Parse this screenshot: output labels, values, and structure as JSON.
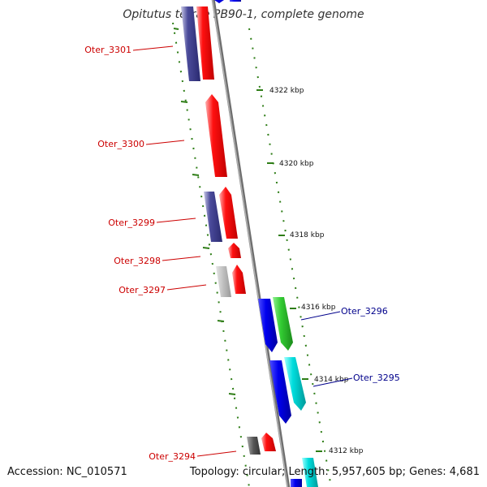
{
  "title": "Opitutus terrae PB90-1, complete genome",
  "accession": "Accession: NC_010571",
  "summary": "Topology: circular; Length: 5,957,605 bp; Genes: 4,681",
  "scale_ticks": [
    {
      "label": "4322 kbp"
    },
    {
      "label": "4320 kbp"
    },
    {
      "label": "4318 kbp"
    },
    {
      "label": "4316 kbp"
    },
    {
      "label": "4314 kbp"
    },
    {
      "label": "4312 kbp"
    }
  ],
  "gene_labels": {
    "reverse_strand": [
      "Oter_3301",
      "Oter_3300",
      "Oter_3299",
      "Oter_3298",
      "Oter_3297",
      "Oter_3294"
    ],
    "forward_strand": [
      "Oter_3296",
      "Oter_3295"
    ]
  },
  "colors": {
    "reverse_label": "#cc0000",
    "forward_label": "#00008b",
    "tick": "#2e7d16",
    "backbone": "#888888"
  }
}
